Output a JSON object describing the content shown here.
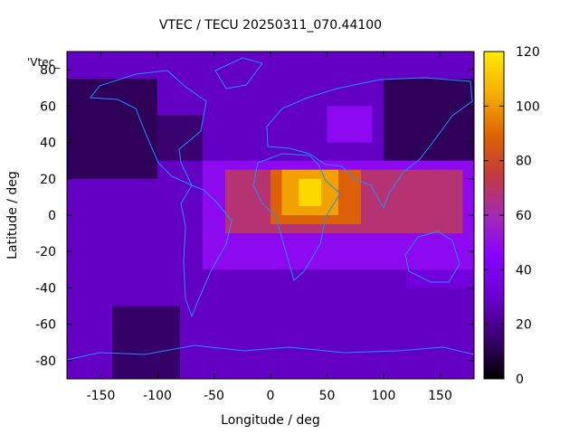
{
  "chart_data": {
    "type": "heatmap",
    "title": "VTEC / TECU 20250311_070.44100",
    "xlabel": "Longitude / deg",
    "ylabel": "Latitude / deg",
    "key_label": "'Vtec_",
    "xlim": [
      -180,
      180
    ],
    "ylim": [
      -90,
      90
    ],
    "xticks": [
      -150,
      -100,
      -50,
      0,
      50,
      100,
      150
    ],
    "yticks": [
      -80,
      -60,
      -40,
      -20,
      0,
      20,
      40,
      60,
      80
    ],
    "colorbar": {
      "range": [
        0,
        120
      ],
      "ticks": [
        0,
        20,
        40,
        60,
        80,
        100,
        120
      ],
      "unit": "TECU"
    },
    "colormap": [
      "#000000",
      "#3a0070",
      "#6a00d0",
      "#8800ff",
      "#a32bb4",
      "#c43a3a",
      "#e06600",
      "#f5b000",
      "#ffea00"
    ],
    "coastline_color": "#1e90ff",
    "grid": false,
    "regions": [
      {
        "lon": [
          -180,
          180
        ],
        "lat": [
          -90,
          90
        ],
        "value": 28
      },
      {
        "lon": [
          -180,
          -100
        ],
        "lat": [
          20,
          75
        ],
        "value": 12
      },
      {
        "lon": [
          -100,
          -60
        ],
        "lat": [
          30,
          55
        ],
        "value": 15
      },
      {
        "lon": [
          -140,
          -80
        ],
        "lat": [
          -90,
          -50
        ],
        "value": 14
      },
      {
        "lon": [
          100,
          180
        ],
        "lat": [
          30,
          75
        ],
        "value": 12
      },
      {
        "lon": [
          120,
          180
        ],
        "lat": [
          -40,
          -10
        ],
        "value": 34
      },
      {
        "lon": [
          -60,
          180
        ],
        "lat": [
          -30,
          30
        ],
        "value": 48
      },
      {
        "lon": [
          50,
          90
        ],
        "lat": [
          40,
          60
        ],
        "value": 48
      },
      {
        "lon": [
          -40,
          170
        ],
        "lat": [
          -10,
          25
        ],
        "value": 68
      },
      {
        "lon": [
          0,
          80
        ],
        "lat": [
          -5,
          25
        ],
        "value": 88
      },
      {
        "lon": [
          10,
          60
        ],
        "lat": [
          0,
          25
        ],
        "value": 102
      },
      {
        "lon": [
          25,
          45
        ],
        "lat": [
          5,
          20
        ],
        "value": 115
      }
    ]
  }
}
